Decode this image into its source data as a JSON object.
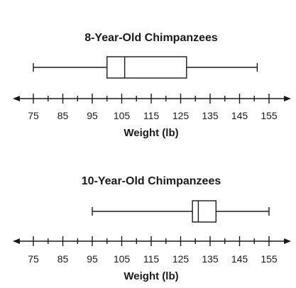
{
  "chart_data": [
    {
      "type": "boxplot",
      "title": "8-Year-Old Chimpanzees",
      "xlabel": "Weight (lb)",
      "xlim": [
        75,
        155
      ],
      "ticks": [
        75,
        85,
        95,
        105,
        115,
        125,
        135,
        145,
        155
      ],
      "tick_labels": [
        "75",
        "85",
        "95",
        "105",
        "115",
        "125",
        "135",
        "145",
        "155"
      ],
      "box": {
        "min": 75,
        "q1": 100,
        "median": 106,
        "q3": 127,
        "max": 151
      }
    },
    {
      "type": "boxplot",
      "title": "10-Year-Old Chimpanzees",
      "xlabel": "Weight (lb)",
      "xlim": [
        75,
        155
      ],
      "ticks": [
        75,
        85,
        95,
        105,
        115,
        125,
        135,
        145,
        155
      ],
      "tick_labels": [
        "75",
        "85",
        "95",
        "105",
        "115",
        "125",
        "135",
        "145",
        "155"
      ],
      "box": {
        "min": 95,
        "q1": 129,
        "median": 131,
        "q3": 137,
        "max": 155
      }
    }
  ]
}
